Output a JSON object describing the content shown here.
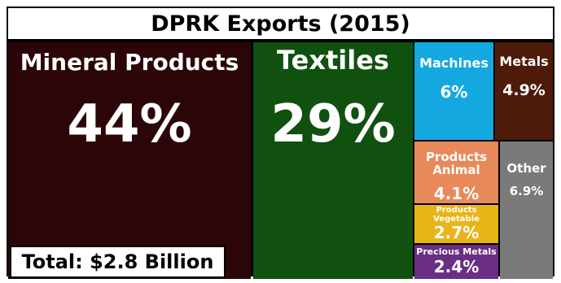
{
  "chart_data": {
    "type": "treemap",
    "title": "DPRK Exports (2015)",
    "total_label": "Total: $2.8 Billion",
    "items": [
      {
        "label": "Mineral Products",
        "value": 44,
        "value_label": "44%",
        "color": "#2b0508"
      },
      {
        "label": "Textiles",
        "value": 29,
        "value_label": "29%",
        "color": "#10510f"
      },
      {
        "label": "Machines",
        "value": 6,
        "value_label": "6%",
        "color": "#14a8e0"
      },
      {
        "label": "Metals",
        "value": 4.9,
        "value_label": "4.9%",
        "color": "#4e1a0a"
      },
      {
        "label": "Products Animal",
        "value": 4.1,
        "value_label": "4.1%",
        "color": "#e8895a"
      },
      {
        "label": "Other",
        "value": 6.9,
        "value_label": "6.9%",
        "color": "#7a7a7a"
      },
      {
        "label": "Products Vegetable",
        "value": 2.7,
        "value_label": "2.7%",
        "color": "#e8b418"
      },
      {
        "label": "Precious Metals",
        "value": 2.4,
        "value_label": "2.4%",
        "color": "#6a2e82"
      }
    ]
  }
}
